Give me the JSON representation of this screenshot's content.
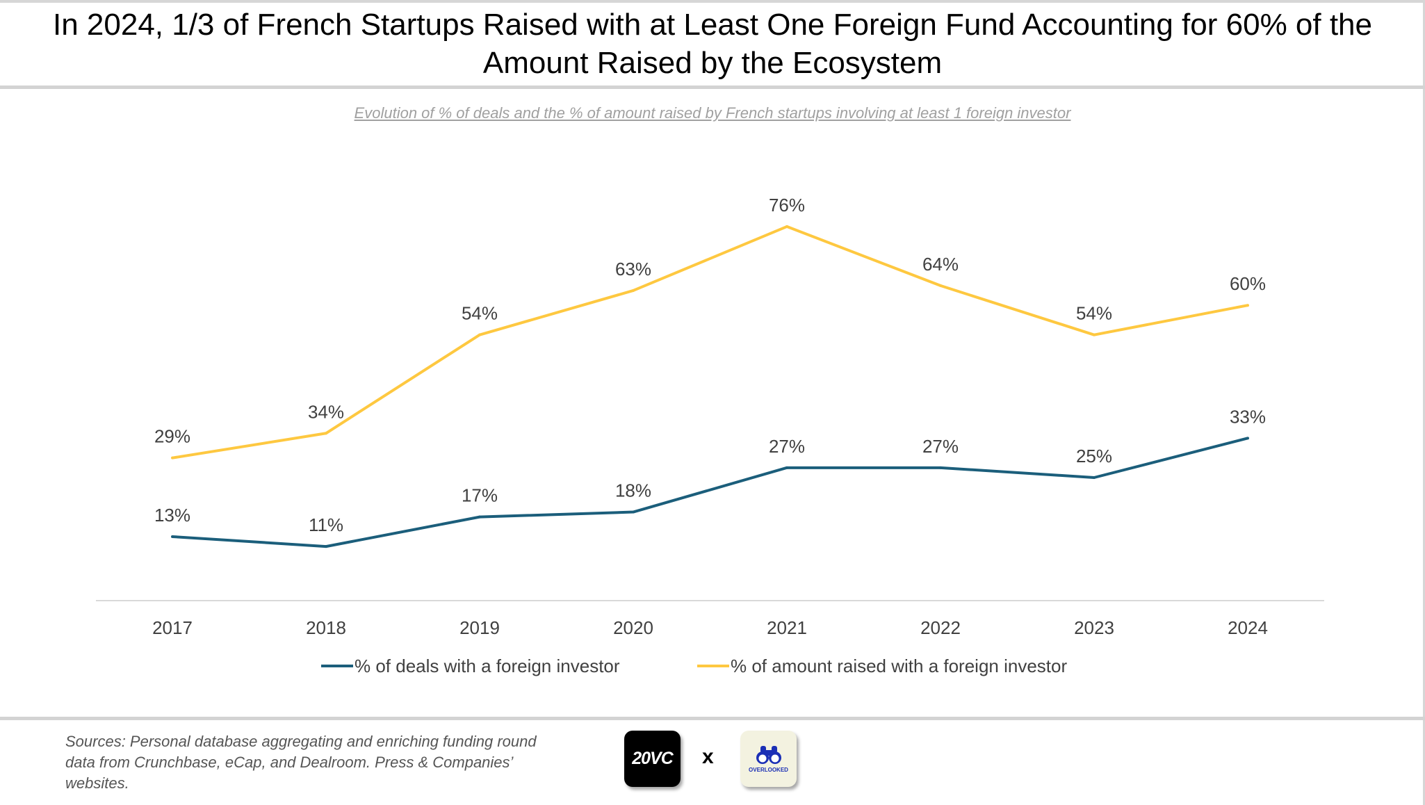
{
  "title": "In 2024, 1/3 of French Startups Raised with at Least One Foreign Fund Accounting for 60% of the Amount Raised by the Ecosystem",
  "title_line1": "In 2024, 1/3 of French Startups Raised with at Least One Foreign Fund Accounting for 60% of the",
  "title_line2": "Amount Raised by the Ecosystem",
  "chart_data": {
    "type": "line",
    "subtitle": "Evolution of % of deals and the % of amount raised by French startups involving at least 1 foreign investor",
    "categories": [
      "2017",
      "2018",
      "2019",
      "2020",
      "2021",
      "2022",
      "2023",
      "2024"
    ],
    "ylim": [
      0,
      100
    ],
    "grid": false,
    "legend_position": "bottom",
    "series": [
      {
        "name": "% of deals with a foreign investor",
        "color": "#1b5e7b",
        "values": [
          13,
          11,
          17,
          18,
          27,
          27,
          25,
          33
        ],
        "labels": [
          "13%",
          "11%",
          "17%",
          "18%",
          "27%",
          "27%",
          "25%",
          "33%"
        ]
      },
      {
        "name": "% of amount raised with a foreign investor",
        "color": "#fec840",
        "values": [
          29,
          34,
          54,
          63,
          76,
          64,
          54,
          60
        ],
        "labels": [
          "29%",
          "34%",
          "54%",
          "63%",
          "76%",
          "64%",
          "54%",
          "60%"
        ]
      }
    ]
  },
  "footer": {
    "sources": "Sources: Personal database aggregating and enriching funding round data from Crunchbase, eCap, and Dealroom. Press & Companies’ websites.",
    "logo1": "20VC",
    "separator": "x",
    "logo2": "OVERLOOKED"
  }
}
